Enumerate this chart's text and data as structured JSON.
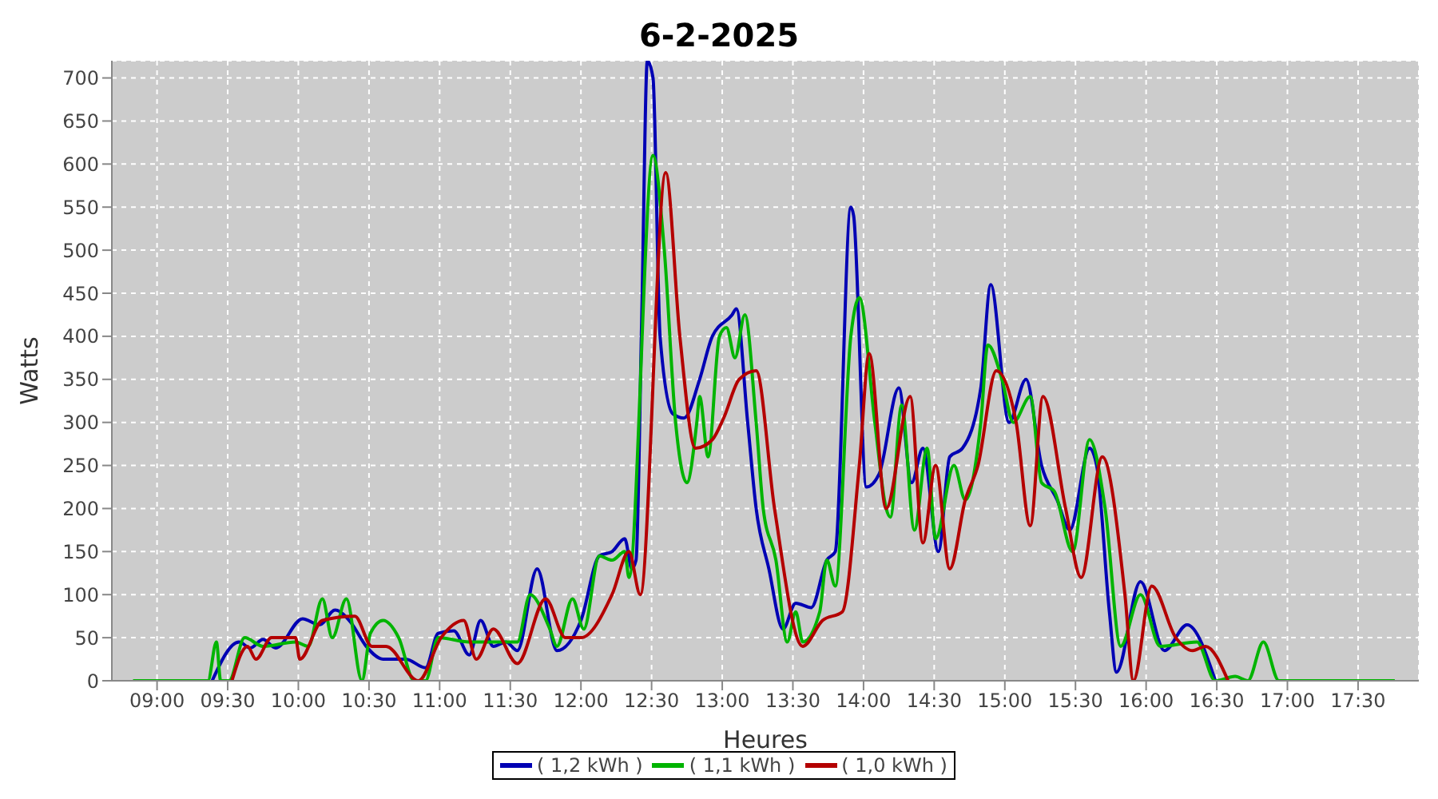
{
  "chart_data": {
    "type": "line",
    "title": "6-2-2025",
    "xlabel": "Heures",
    "ylabel": "Watts",
    "xlim": [
      8.68,
      17.93
    ],
    "xticks": [
      {
        "value": 9,
        "label": "09:00"
      },
      {
        "value": 9.5,
        "label": "09:30"
      },
      {
        "value": 10,
        "label": "10:00"
      },
      {
        "value": 10.5,
        "label": "10:30"
      },
      {
        "value": 11,
        "label": "11:00"
      },
      {
        "value": 11.5,
        "label": "11:30"
      },
      {
        "value": 12,
        "label": "12:00"
      },
      {
        "value": 12.5,
        "label": "12:30"
      },
      {
        "value": 13,
        "label": "13:00"
      },
      {
        "value": 13.5,
        "label": "13:30"
      },
      {
        "value": 14,
        "label": "14:00"
      },
      {
        "value": 14.5,
        "label": "14:30"
      },
      {
        "value": 15,
        "label": "15:00"
      },
      {
        "value": 15.5,
        "label": "15:30"
      },
      {
        "value": 16,
        "label": "16:00"
      },
      {
        "value": 16.5,
        "label": "16:30"
      },
      {
        "value": 17,
        "label": "17:00"
      },
      {
        "value": 17.5,
        "label": "17:30"
      }
    ],
    "ylim": [
      0,
      720
    ],
    "yticks": [
      0,
      50,
      100,
      150,
      200,
      250,
      300,
      350,
      400,
      450,
      500,
      550,
      600,
      650,
      700
    ],
    "grid": true,
    "legend": "bottom",
    "marker": "none",
    "series": [
      {
        "name": "( 1,2 kWh )",
        "color": "#0000b4",
        "x": [
          9.39,
          9.58,
          9.66,
          9.75,
          9.84,
          10.03,
          10.15,
          10.26,
          10.37,
          10.48,
          10.6,
          10.76,
          10.9,
          10.99,
          11.1,
          11.21,
          11.29,
          11.38,
          11.47,
          11.55,
          11.69,
          11.83,
          12.0,
          12.13,
          12.22,
          12.31,
          12.36,
          12.39,
          12.43,
          12.47,
          12.51,
          12.56,
          12.65,
          12.73,
          12.84,
          12.93,
          13.07,
          13.1,
          13.18,
          13.24,
          13.33,
          13.43,
          13.52,
          13.63,
          13.74,
          13.8,
          13.91,
          13.93,
          14.02,
          14.11,
          14.25,
          14.34,
          14.42,
          14.53,
          14.61,
          14.7,
          14.83,
          14.9,
          15.03,
          15.15,
          15.26,
          15.37,
          15.46,
          15.6,
          15.65,
          15.74,
          15.79,
          15.96,
          16.13,
          16.29,
          16.49
        ],
        "values": [
          0,
          45,
          38,
          48,
          38,
          72,
          65,
          82,
          68,
          40,
          25,
          25,
          15,
          55,
          58,
          30,
          70,
          40,
          45,
          35,
          130,
          35,
          70,
          145,
          150,
          165,
          130,
          140,
          420,
          720,
          700,
          400,
          310,
          305,
          350,
          400,
          425,
          432,
          300,
          200,
          130,
          60,
          90,
          85,
          140,
          150,
          550,
          540,
          225,
          240,
          340,
          230,
          270,
          150,
          260,
          270,
          340,
          460,
          300,
          350,
          250,
          210,
          175,
          270,
          250,
          80,
          10,
          115,
          35,
          65,
          0
        ]
      },
      {
        "name": "( 1,1 kWh )",
        "color": "#00b400",
        "x": [
          8.83,
          9.36,
          9.42,
          9.45,
          9.51,
          9.62,
          9.75,
          9.98,
          10.07,
          10.17,
          10.24,
          10.34,
          10.45,
          10.51,
          10.6,
          10.71,
          10.82,
          10.9,
          10.99,
          11.21,
          11.55,
          11.64,
          11.78,
          11.83,
          11.94,
          12.02,
          12.13,
          12.22,
          12.31,
          12.34,
          12.51,
          12.59,
          12.67,
          12.75,
          12.82,
          12.84,
          12.9,
          12.98,
          13.03,
          13.09,
          13.16,
          13.24,
          13.29,
          13.38,
          13.46,
          13.52,
          13.57,
          13.69,
          13.74,
          13.8,
          13.91,
          13.97,
          14.08,
          14.16,
          14.19,
          14.27,
          14.36,
          14.45,
          14.51,
          14.64,
          14.72,
          14.83,
          14.88,
          14.98,
          15.06,
          15.18,
          15.26,
          15.35,
          15.48,
          15.6,
          15.71,
          15.82,
          15.96,
          16.1,
          16.36,
          16.49,
          16.63,
          16.72,
          16.83,
          16.94,
          17.76
        ],
        "values": [
          0,
          0,
          45,
          0,
          0,
          50,
          40,
          45,
          40,
          95,
          50,
          95,
          0,
          55,
          70,
          50,
          0,
          0,
          50,
          45,
          45,
          100,
          60,
          40,
          95,
          60,
          145,
          140,
          150,
          120,
          610,
          500,
          300,
          230,
          300,
          330,
          260,
          400,
          410,
          375,
          425,
          300,
          200,
          140,
          45,
          80,
          45,
          80,
          140,
          110,
          400,
          445,
          300,
          200,
          190,
          320,
          175,
          270,
          165,
          250,
          210,
          300,
          390,
          350,
          300,
          330,
          230,
          220,
          150,
          280,
          200,
          40,
          100,
          40,
          45,
          0,
          5,
          0,
          45,
          0,
          0
        ]
      },
      {
        "name": "( 1,0 kWh )",
        "color": "#b40000",
        "x": [
          9.53,
          9.64,
          9.7,
          9.81,
          9.98,
          10.01,
          10.17,
          10.4,
          10.52,
          10.62,
          10.85,
          11.01,
          11.17,
          11.26,
          11.38,
          11.55,
          11.75,
          11.89,
          12.0,
          12.22,
          12.34,
          12.42,
          12.6,
          12.7,
          12.81,
          12.93,
          13.01,
          13.12,
          13.24,
          13.37,
          13.57,
          13.71,
          13.85,
          13.97,
          14.04,
          14.16,
          14.33,
          14.42,
          14.51,
          14.61,
          14.72,
          14.81,
          14.94,
          15.08,
          15.18,
          15.27,
          15.43,
          15.54,
          15.69,
          15.85,
          15.91,
          16.04,
          16.21,
          16.33,
          16.42,
          16.58
        ],
        "values": [
          0,
          40,
          25,
          50,
          50,
          25,
          70,
          75,
          40,
          40,
          0,
          50,
          70,
          25,
          60,
          20,
          95,
          50,
          50,
          100,
          150,
          100,
          590,
          400,
          270,
          280,
          305,
          350,
          360,
          200,
          40,
          70,
          80,
          250,
          380,
          200,
          330,
          160,
          250,
          130,
          210,
          250,
          360,
          300,
          180,
          330,
          200,
          120,
          260,
          100,
          0,
          110,
          50,
          35,
          40,
          0
        ]
      }
    ]
  }
}
